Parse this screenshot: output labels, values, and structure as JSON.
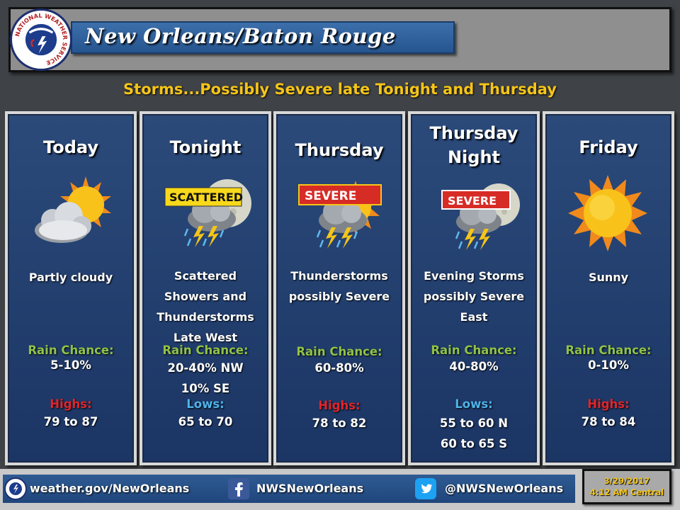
{
  "header": {
    "title": "New Orleans/Baton Rouge",
    "logo_text": "NATIONAL WEATHER SERVICE"
  },
  "headline": "Storms...Possibly Severe late Tonight and Thursday",
  "panels": [
    {
      "day": [
        "Today"
      ],
      "icon": "partly-cloudy-icon",
      "desc": [
        "Partly cloudy"
      ],
      "rain_label": "Rain Chance:",
      "rain": [
        "5-10%"
      ],
      "temp_label": "Highs:",
      "temp": [
        "79 to 87"
      ]
    },
    {
      "day": [
        "Tonight"
      ],
      "icon": "scattered-thunderstorms-icon",
      "badge": "SCATTERED",
      "desc": [
        "Scattered",
        "Showers and",
        "Thunderstorms",
        "Late West"
      ],
      "rain_label": "Rain Chance:",
      "rain": [
        "20-40% NW",
        "10% SE"
      ],
      "temp_label": "Lows:",
      "temp": [
        "65 to 70"
      ]
    },
    {
      "day": [
        "Thursday"
      ],
      "icon": "severe-thunderstorms-icon",
      "badge": "SEVERE",
      "desc": [
        "Thunderstorms",
        "possibly Severe"
      ],
      "rain_label": "Rain Chance:",
      "rain": [
        "60-80%"
      ],
      "temp_label": "Highs:",
      "temp": [
        "78 to 82"
      ]
    },
    {
      "day": [
        "Thursday",
        "Night"
      ],
      "icon": "severe-thunderstorms-night-icon",
      "badge": "SEVERE",
      "desc": [
        "Evening Storms",
        "possibly Severe",
        "East"
      ],
      "rain_label": "Rain Chance:",
      "rain": [
        "40-80%"
      ],
      "temp_label": "Lows:",
      "temp": [
        "55 to 60 N",
        "60 to 65 S"
      ]
    },
    {
      "day": [
        "Friday"
      ],
      "icon": "sunny-icon",
      "desc": [
        "Sunny"
      ],
      "rain_label": "Rain Chance:",
      "rain": [
        "0-10%"
      ],
      "temp_label": "Highs:",
      "temp": [
        "78 to 84"
      ]
    }
  ],
  "footer": {
    "website": "weather.gov/NewOrleans",
    "facebook": "NWSNewOrleans",
    "twitter": "@NWSNewOrleans",
    "date": "3/29/2017",
    "time": "4:12 AM Central"
  },
  "colors": {
    "headline": "#f5c518",
    "rain_label": "#8fc249",
    "highs_label": "#e0252b",
    "lows_label": "#4fb3e8",
    "panel_bg": "#1f3a6a"
  }
}
